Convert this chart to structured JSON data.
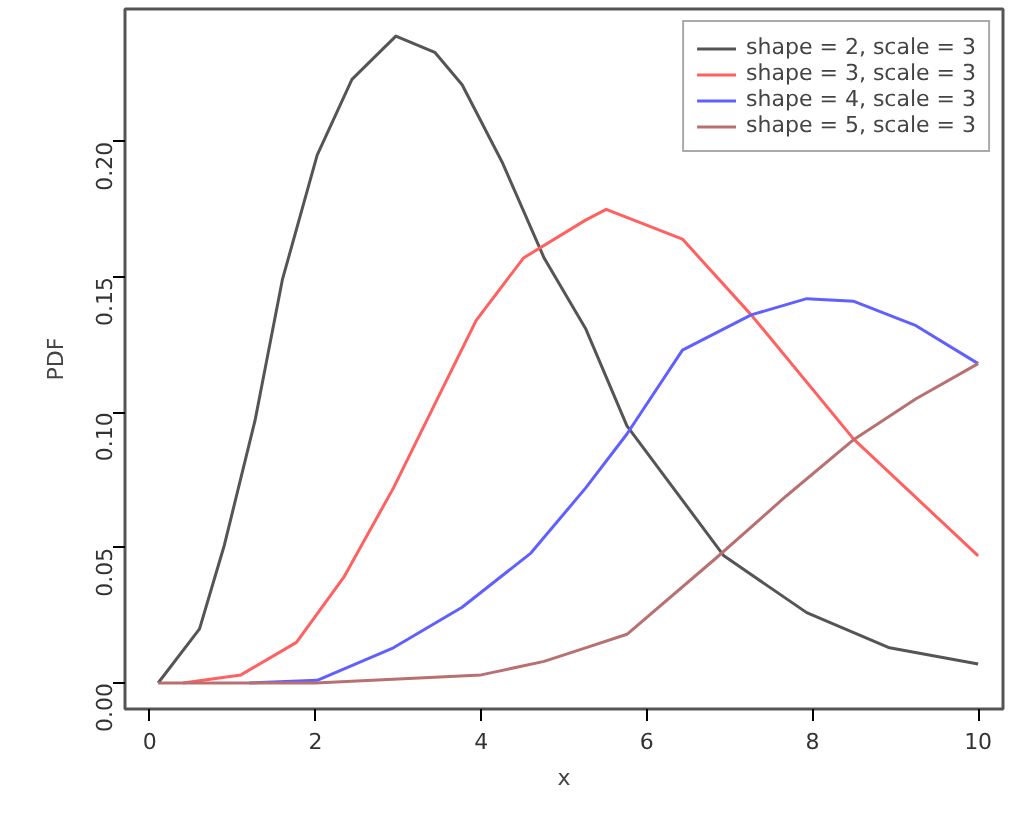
{
  "chart_data": {
    "type": "line",
    "xlabel": "x",
    "ylabel": "PDF",
    "xlim": [
      -0.3,
      10.3
    ],
    "ylim": [
      -0.0096,
      0.249
    ],
    "xticks": [
      0,
      2,
      4,
      6,
      8,
      10
    ],
    "yticks": [
      {
        "value": 0,
        "label": "0.00"
      },
      {
        "value": 0.05,
        "label": "0.05"
      },
      {
        "value": 0.1,
        "label": "0.10"
      },
      {
        "value": 0.15,
        "label": "0.15"
      },
      {
        "value": 0.2,
        "label": "0.20"
      }
    ],
    "grid": false,
    "legend": "top right",
    "line_style": "solid",
    "marker": "none",
    "series": [
      {
        "name": "shape = 2, scale = 3",
        "color": "#555555",
        "x": [
          0.1,
          0.6,
          0.9,
          1.27,
          1.6,
          2.02,
          2.44,
          2.97,
          3.44,
          3.77,
          4.26,
          4.76,
          5.26,
          5.76,
          6.93,
          7.93,
          8.93,
          10
        ],
        "values": [
          0,
          0.02,
          0.051,
          0.097,
          0.149,
          0.195,
          0.223,
          0.239,
          0.233,
          0.221,
          0.192,
          0.157,
          0.131,
          0.095,
          0.047,
          0.026,
          0.013,
          0.007
        ]
      },
      {
        "name": "shape = 3, scale = 3",
        "color": "#ff6060",
        "x": [
          0.4,
          1.1,
          1.77,
          2.34,
          2.94,
          3.44,
          3.94,
          4.51,
          5.26,
          5.51,
          6.43,
          7.26,
          8.5,
          10
        ],
        "values": [
          0,
          0.003,
          0.015,
          0.039,
          0.072,
          0.103,
          0.134,
          0.157,
          0.171,
          0.175,
          0.164,
          0.136,
          0.09,
          0.047
        ]
      },
      {
        "name": "shape = 4, scale = 3",
        "color": "#6060ff",
        "x": [
          1.2,
          2.02,
          2.94,
          3.77,
          4.6,
          5.26,
          5.76,
          6.43,
          7.26,
          7.93,
          8.5,
          9.25,
          10
        ],
        "values": [
          0,
          0.001,
          0.013,
          0.028,
          0.048,
          0.072,
          0.092,
          0.123,
          0.136,
          0.142,
          0.141,
          0.132,
          0.118
        ]
      },
      {
        "name": "shape = 5, scale = 3",
        "color": "#b87070",
        "x": [
          0.1,
          2,
          4,
          4.76,
          5.26,
          5.76,
          6.83,
          7.68,
          8.5,
          9.25,
          10
        ],
        "values": [
          0,
          0,
          0.003,
          0.008,
          0.013,
          0.018,
          0.046,
          0.069,
          0.09,
          0.105,
          0.118
        ]
      }
    ]
  }
}
